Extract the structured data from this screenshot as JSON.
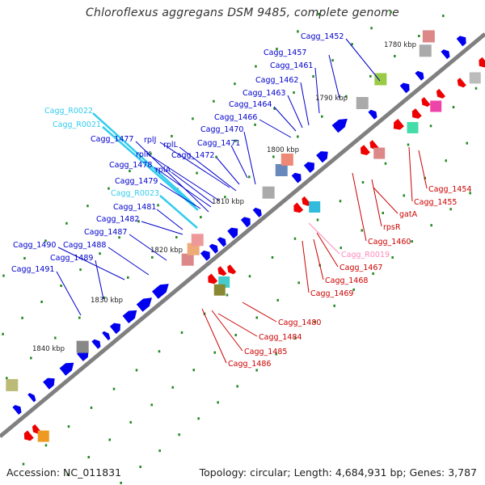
{
  "title": "Chloroflexus aggregans DSM 9485, complete genome",
  "footer": {
    "accession": "Accession: NC_011831",
    "summary": "Topology: circular; Length: 4,684,931 bp; Genes: 3,787"
  },
  "colors": {
    "axis": "#808080",
    "plus_strand_gene": "#0000ee",
    "minus_strand_gene": "#ee0000",
    "plus_label": "#0000cc",
    "minus_label": "#cc0000",
    "rna_plus": "#33ccee",
    "rna_minus": "#ff88bb",
    "gc_dot": "#228822"
  },
  "kbp_ticks": [
    "1780 kbp",
    "1790 kbp",
    "1800 kbp",
    "1810 kbp",
    "1820 kbp",
    "1830 kbp",
    "1840 kbp"
  ],
  "upper_labels": [
    {
      "text": "Cagg_1452",
      "kind": "gene"
    },
    {
      "text": "Cagg_1457",
      "kind": "gene"
    },
    {
      "text": "Cagg_1461",
      "kind": "gene"
    },
    {
      "text": "Cagg_1462",
      "kind": "gene"
    },
    {
      "text": "Cagg_1463",
      "kind": "gene"
    },
    {
      "text": "Cagg_1464",
      "kind": "gene"
    },
    {
      "text": "Cagg_1466",
      "kind": "gene"
    },
    {
      "text": "Cagg_R0022",
      "kind": "rna"
    },
    {
      "text": "Cagg_R0021",
      "kind": "rna"
    },
    {
      "text": "Cagg_1470",
      "kind": "gene"
    },
    {
      "text": "Cagg_1477",
      "kind": "gene"
    },
    {
      "text": "rplJ",
      "kind": "gene"
    },
    {
      "text": "rplL",
      "kind": "gene"
    },
    {
      "text": "Cagg_1471",
      "kind": "gene"
    },
    {
      "text": "rplK",
      "kind": "gene"
    },
    {
      "text": "Cagg_1472",
      "kind": "gene"
    },
    {
      "text": "Cagg_1478",
      "kind": "gene"
    },
    {
      "text": "rplA",
      "kind": "gene"
    },
    {
      "text": "Cagg_1479",
      "kind": "gene"
    },
    {
      "text": "Cagg_R0023",
      "kind": "rna"
    },
    {
      "text": "Cagg_1481",
      "kind": "gene"
    },
    {
      "text": "Cagg_1482",
      "kind": "gene"
    },
    {
      "text": "Cagg_1487",
      "kind": "gene"
    },
    {
      "text": "Cagg_1490",
      "kind": "gene"
    },
    {
      "text": "Cagg_1488",
      "kind": "gene"
    },
    {
      "text": "Cagg_1489",
      "kind": "gene"
    },
    {
      "text": "Cagg_1491",
      "kind": "gene"
    }
  ],
  "lower_labels": [
    {
      "text": "Cagg_1454",
      "kind": "gene"
    },
    {
      "text": "Cagg_1455",
      "kind": "gene"
    },
    {
      "text": "gatA",
      "kind": "gene"
    },
    {
      "text": "rpsR",
      "kind": "gene"
    },
    {
      "text": "Cagg_1460",
      "kind": "gene"
    },
    {
      "text": "Cagg_R0019",
      "kind": "rna"
    },
    {
      "text": "Cagg_1467",
      "kind": "gene"
    },
    {
      "text": "Cagg_1468",
      "kind": "gene"
    },
    {
      "text": "Cagg_1469",
      "kind": "gene"
    },
    {
      "text": "Cagg_1480",
      "kind": "gene"
    },
    {
      "text": "Cagg_1484",
      "kind": "gene"
    },
    {
      "text": "Cagg_1485",
      "kind": "gene"
    },
    {
      "text": "Cagg_1486",
      "kind": "gene"
    }
  ]
}
